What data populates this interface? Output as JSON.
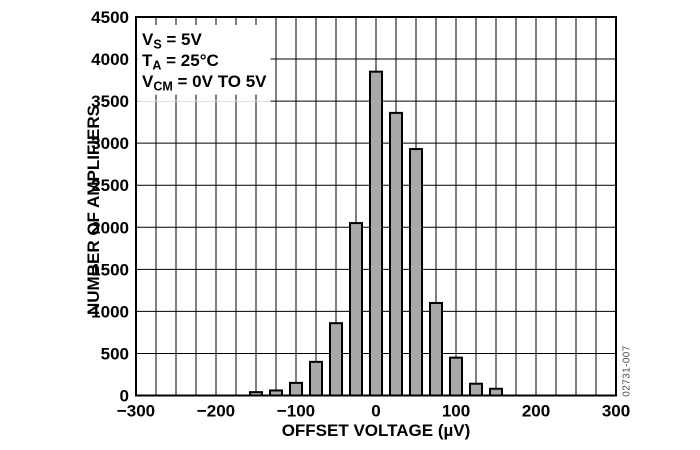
{
  "figure": {
    "watermark": "02731-007",
    "background": "#ffffff"
  },
  "chart_data": {
    "type": "bar",
    "title": "",
    "xlabel": "OFFSET VOLTAGE (µV)",
    "ylabel": "NUMBER OF AMPLIFIERS",
    "xlim": [
      -300,
      300
    ],
    "ylim": [
      0,
      4500
    ],
    "grid": true,
    "legend": false,
    "x_minor_grid_step": 25,
    "y_grid_step": 500,
    "x_tick_values": [
      -300,
      -200,
      -100,
      0,
      100,
      200,
      300
    ],
    "x_tick_labels": [
      "−300",
      "−200",
      "−100",
      "0",
      "100",
      "200",
      "300"
    ],
    "y_tick_values": [
      0,
      500,
      1000,
      1500,
      2000,
      2500,
      3000,
      3500,
      4000,
      4500
    ],
    "y_tick_labels": [
      "0",
      "500",
      "1000",
      "1500",
      "2000",
      "2500",
      "3000",
      "3500",
      "4000",
      "4500"
    ],
    "categories": [
      -150,
      -125,
      -100,
      -75,
      -50,
      -25,
      0,
      25,
      50,
      75,
      100,
      125,
      150
    ],
    "values": [
      40,
      60,
      150,
      400,
      860,
      2050,
      3850,
      3360,
      2930,
      1100,
      450,
      140,
      80
    ],
    "colors": {
      "bar_fill": "#a9a9a9",
      "bar_edge": "#000000",
      "grid": "#000000",
      "text": "#000000",
      "watermark": "#4d4d4d",
      "background": "#ffffff"
    },
    "annotations": [
      {
        "pre": "V",
        "sub": "S",
        "rest": " = 5V"
      },
      {
        "pre": "T",
        "sub": "A",
        "rest": " = 25°C"
      },
      {
        "pre": "V",
        "sub": "CM",
        "rest": " = 0V TO 5V"
      }
    ]
  }
}
